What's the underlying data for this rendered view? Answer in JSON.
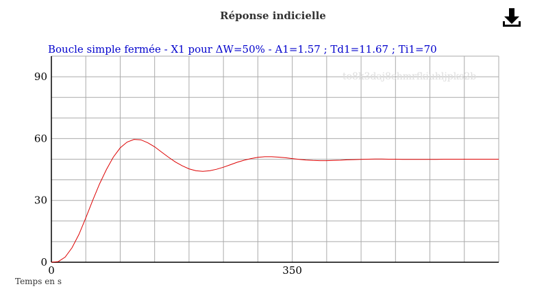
{
  "header": {
    "title": "Réponse indicielle",
    "download_icon": "download-icon"
  },
  "watermark": "to8k3daj8chmrfkiuhljpks2b",
  "colors": {
    "curve": "#dd0000",
    "subtitle": "#0000cc",
    "grid": "#aaaaaa"
  },
  "chart_data": {
    "type": "line",
    "title": "Boucle simple fermée - X1 pour ΔW=50% - A1=1.57 ; Td1=11.67 ; Ti1=70",
    "xlabel": "Temps en s",
    "ylabel": "",
    "xlim": [
      0,
      650
    ],
    "ylim": [
      0,
      100
    ],
    "xticks": [
      0,
      350
    ],
    "yticks": [
      0,
      30,
      60,
      90
    ],
    "grid": true,
    "series": [
      {
        "x": [
          0,
          10,
          20,
          30,
          40,
          50,
          60,
          70,
          80,
          90,
          100,
          110,
          120,
          130,
          140,
          150,
          160,
          170,
          180,
          190,
          200,
          210,
          220,
          230,
          240,
          250,
          260,
          270,
          280,
          290,
          300,
          310,
          320,
          330,
          340,
          350,
          360,
          370,
          380,
          390,
          400,
          410,
          420,
          430,
          440,
          450,
          460,
          470,
          480,
          490,
          500,
          510,
          520,
          530,
          540,
          550,
          560,
          570,
          580,
          590,
          600,
          610,
          620,
          630,
          640,
          650
        ],
        "values": [
          0,
          0.3,
          2.5,
          7,
          13.5,
          21.5,
          30,
          38,
          45,
          51,
          55.5,
          58.3,
          59.6,
          59.4,
          58,
          56,
          53.5,
          51,
          48.7,
          46.8,
          45.3,
          44.4,
          44.1,
          44.4,
          45.1,
          46.1,
          47.3,
          48.5,
          49.5,
          50.3,
          50.9,
          51.2,
          51.2,
          51.0,
          50.7,
          50.3,
          49.9,
          49.6,
          49.4,
          49.3,
          49.3,
          49.4,
          49.5,
          49.7,
          49.8,
          49.9,
          50.0,
          50.05,
          50.05,
          50.0,
          50.0,
          49.95,
          49.9,
          49.9,
          49.9,
          49.95,
          49.95,
          50.0,
          50.0,
          50.0,
          50.0,
          50.0,
          50.0,
          50.0,
          50.0,
          50.0
        ]
      }
    ]
  }
}
